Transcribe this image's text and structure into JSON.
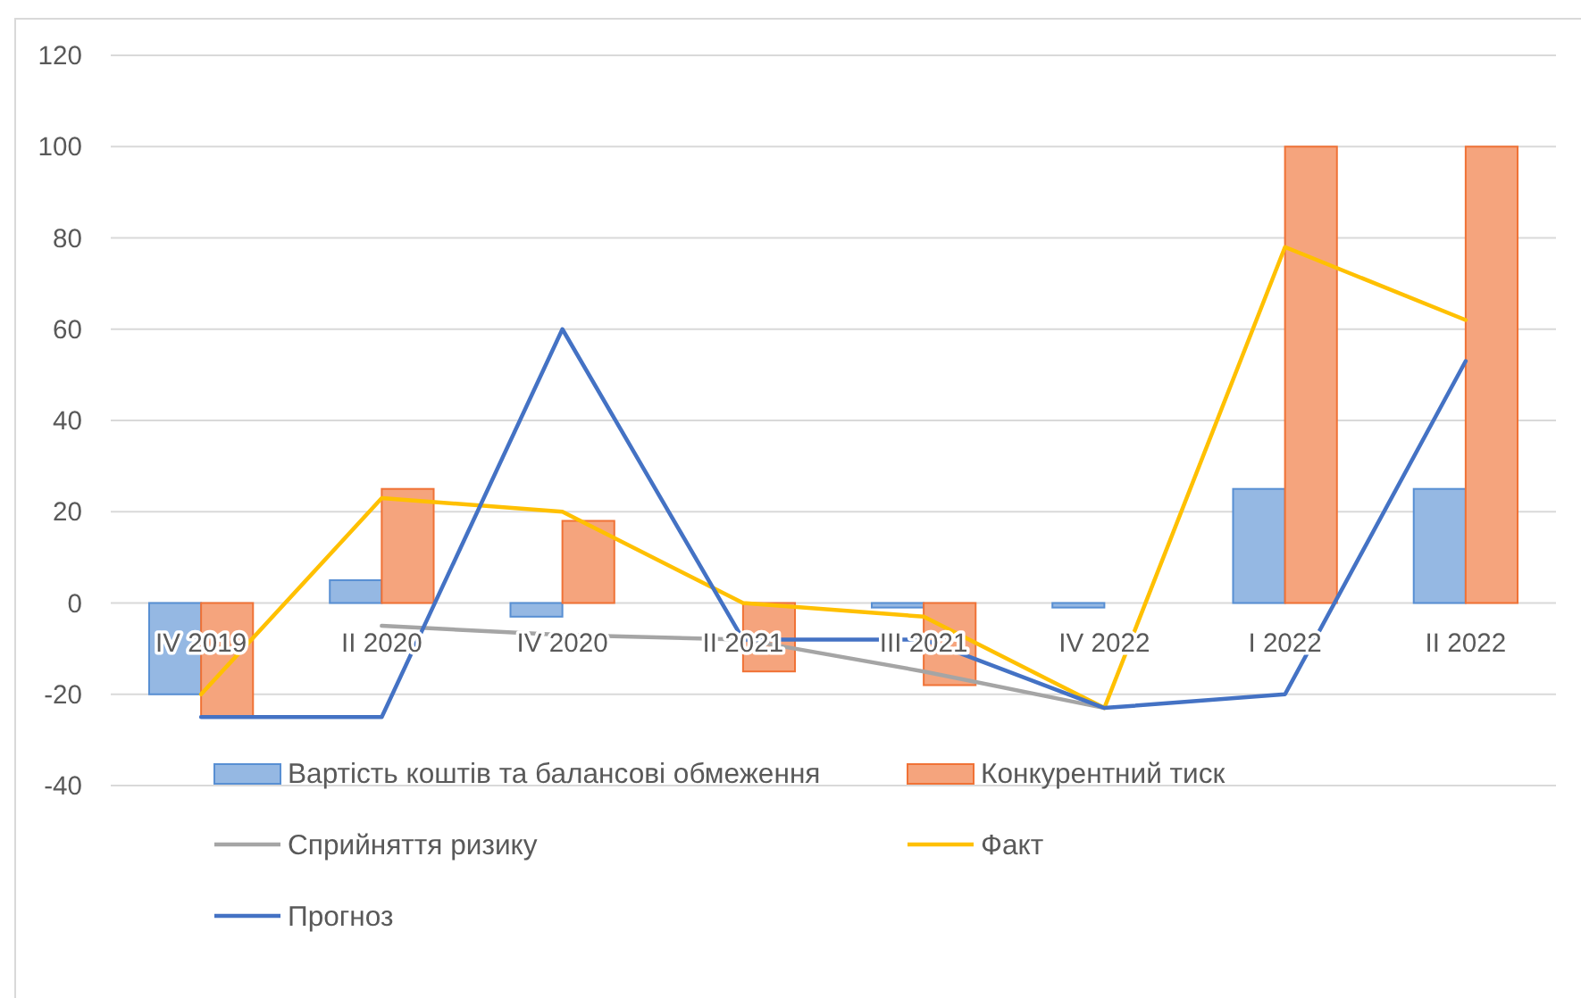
{
  "chart_data": {
    "type": "bar",
    "categories": [
      "IV 2019",
      "II 2020",
      "IV 2020",
      "II 2021",
      "III 2021",
      "IV 2022",
      "I 2022",
      "II 2022"
    ],
    "series": [
      {
        "name": "Вартість коштів та балансові обмеження",
        "color": "#95b8e3",
        "values": [
          -20,
          5,
          -3,
          0,
          -1,
          -1,
          25,
          25
        ]
      },
      {
        "name": "Конкурентний тиск",
        "color": "#f5a47d",
        "values": [
          -25,
          25,
          18,
          -15,
          -18,
          0,
          100,
          100
        ]
      },
      {
        "name": "Сприйняття ризику",
        "type": "line",
        "color": "#a5a5a5",
        "values": [
          null,
          -5,
          -7,
          -8,
          -15,
          -23,
          null,
          null
        ]
      },
      {
        "name": "Факт",
        "type": "line",
        "color": "#ffc000",
        "values": [
          -20,
          23,
          20,
          0,
          -3,
          -23,
          78,
          62
        ]
      },
      {
        "name": "Прогноз",
        "type": "line",
        "color": "#4472c4",
        "values": [
          -25,
          -25,
          60,
          -8,
          -8,
          -23,
          -20,
          53
        ]
      }
    ],
    "ylim": [
      -40,
      120
    ],
    "yticks": [
      -40,
      -20,
      0,
      20,
      40,
      60,
      80,
      100,
      120
    ],
    "grid": "y",
    "legend": "bottom"
  }
}
